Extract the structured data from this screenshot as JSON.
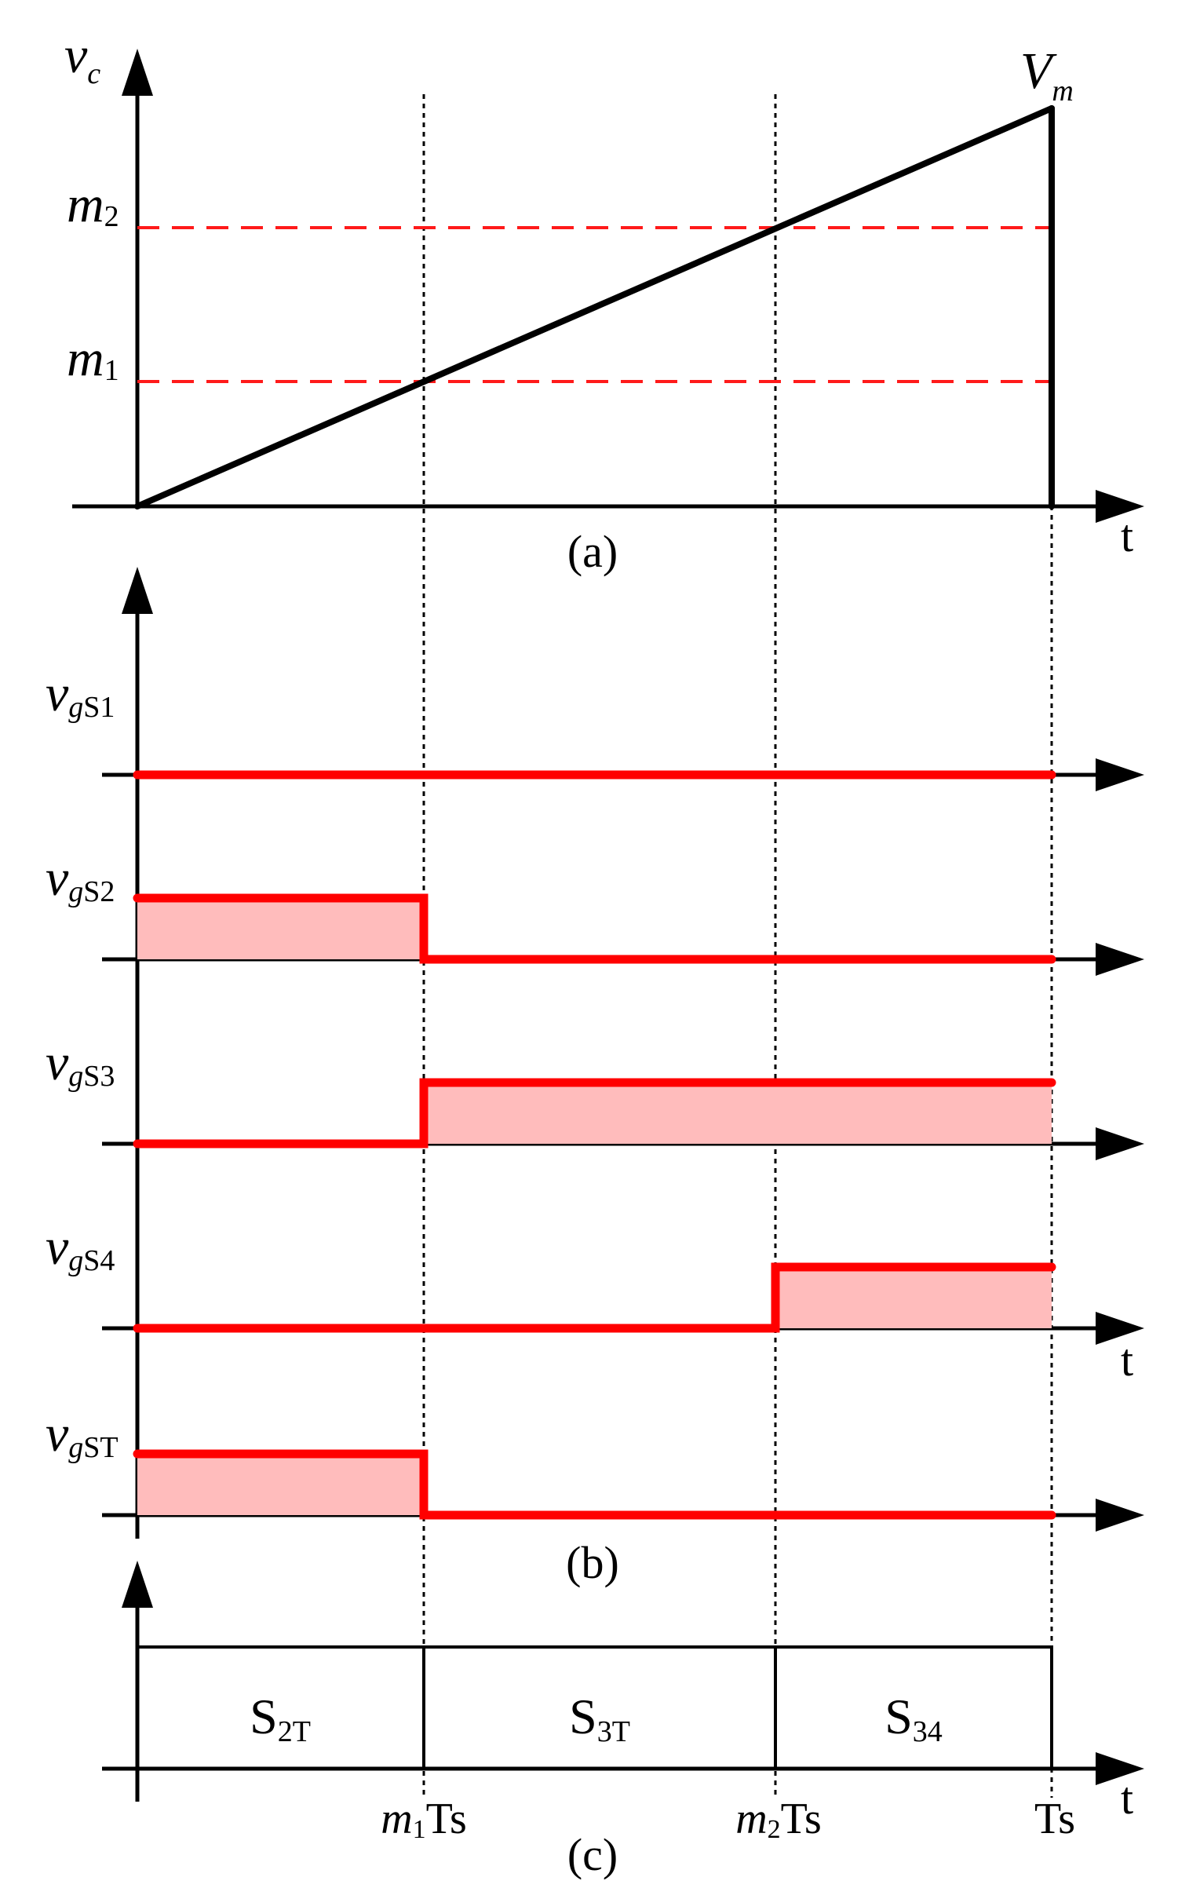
{
  "panel_a": {
    "y_label": "v",
    "y_label_sub": "c",
    "peak_label": "V",
    "peak_label_sub": "m",
    "m2_label": "m",
    "m2_sub": "2",
    "m1_label": "m",
    "m1_sub": "1",
    "t_label": "t",
    "caption": "(a)",
    "levels": {
      "m1": 0.3,
      "m2": 0.7,
      "Vm": 1.0
    },
    "crossings": {
      "m1Ts": 0.3,
      "m2Ts": 0.7,
      "Ts": 1.0
    }
  },
  "panel_b": {
    "caption": "(b)",
    "t_label": "t",
    "signals": [
      {
        "name": "v",
        "sub": "gS1",
        "levels": [
          0,
          0,
          0
        ]
      },
      {
        "name": "v",
        "sub": "gS2",
        "levels": [
          1,
          0,
          0
        ]
      },
      {
        "name": "v",
        "sub": "gS3",
        "levels": [
          0,
          1,
          1
        ]
      },
      {
        "name": "v",
        "sub": "gS4",
        "levels": [
          0,
          0,
          1
        ]
      },
      {
        "name": "v",
        "sub": "gST",
        "levels": [
          1,
          0,
          0
        ]
      }
    ]
  },
  "panel_c": {
    "caption": "(c)",
    "t_label": "t",
    "segments": [
      {
        "label": "S",
        "sub": "2T"
      },
      {
        "label": "S",
        "sub": "3T"
      },
      {
        "label": "S",
        "sub": "34"
      }
    ],
    "tick_m1": "m",
    "tick_m1_sub": "1",
    "tick_m1_suffix": "Ts",
    "tick_m2": "m",
    "tick_m2_sub": "2",
    "tick_m2_suffix": "Ts",
    "tick_ts": "Ts"
  },
  "colors": {
    "ramp": "#000000",
    "pulse": "#ff0000",
    "fill": "#ffbcbc",
    "threshold": "#ff1a1a"
  }
}
